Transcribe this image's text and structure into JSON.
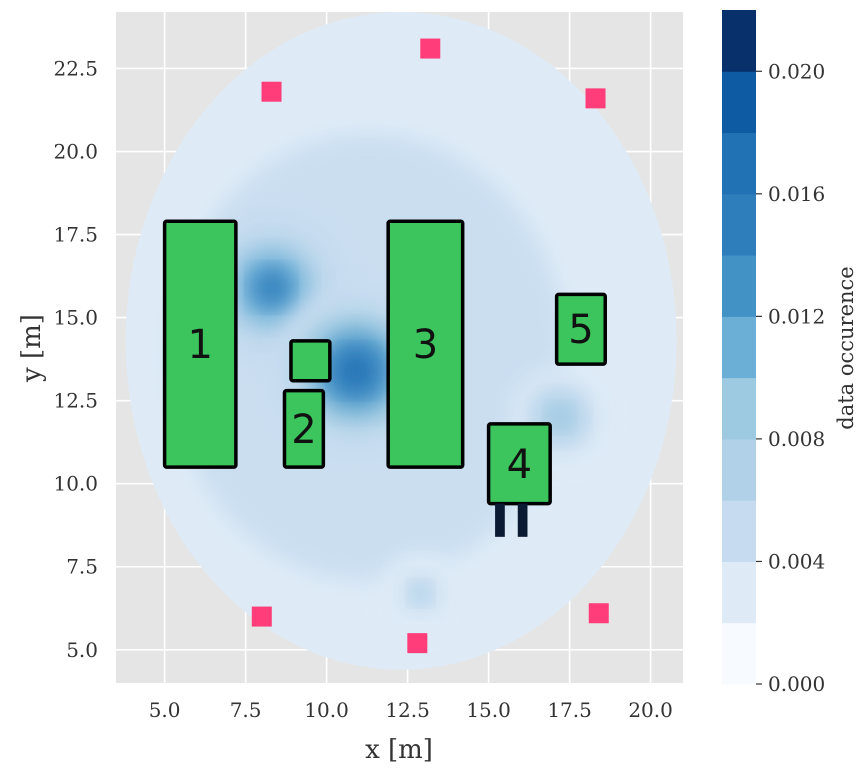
{
  "chart_data": {
    "type": "heatmap",
    "xlabel": "x [m]",
    "ylabel": "y [m]",
    "xlim": [
      3.5,
      21.0
    ],
    "ylim": [
      4.0,
      24.2
    ],
    "x_ticks": [
      "5.0",
      "7.5",
      "10.0",
      "12.5",
      "15.0",
      "17.5",
      "20.0"
    ],
    "y_ticks": [
      "5.0",
      "7.5",
      "10.0",
      "12.5",
      "15.0",
      "17.5",
      "20.0",
      "22.5"
    ],
    "grid": true,
    "background_color": "#e5e5e5",
    "colorbar": {
      "label": "data occurence",
      "min": 0.0,
      "max": 0.022,
      "levels": 11,
      "ticks": [
        "0.000",
        "0.004",
        "0.008",
        "0.012",
        "0.016",
        "0.020"
      ],
      "colors": [
        "#f7fbff",
        "#deebf7",
        "#c6dbef",
        "#b0d1e8",
        "#9ecae1",
        "#6baed6",
        "#4292c6",
        "#2f7ebc",
        "#2171b5",
        "#0f5ba3",
        "#08306b"
      ]
    },
    "density_hotspots": [
      {
        "x": 8.3,
        "y": 15.9,
        "value": 0.014
      },
      {
        "x": 10.9,
        "y": 13.4,
        "value": 0.016
      },
      {
        "x": 17.2,
        "y": 12.0,
        "value": 0.008
      },
      {
        "x": 12.9,
        "y": 6.7,
        "value": 0.006
      }
    ],
    "density_footprint": {
      "center_x": 12.3,
      "center_y": 14.3,
      "radius_x": 8.5,
      "radius_y": 9.9
    },
    "obstacles": [
      {
        "label": "1",
        "x0": 5.0,
        "x1": 7.2,
        "y0": 10.5,
        "y1": 17.9
      },
      {
        "label": "2",
        "x0": 8.7,
        "x1": 9.9,
        "y0": 10.5,
        "y1": 12.8
      },
      {
        "label": "",
        "x0": 8.9,
        "x1": 10.1,
        "y0": 13.1,
        "y1": 14.3
      },
      {
        "label": "3",
        "x0": 11.9,
        "x1": 14.2,
        "y0": 10.5,
        "y1": 17.9
      },
      {
        "label": "4",
        "x0": 15.0,
        "x1": 16.9,
        "y0": 9.4,
        "y1": 11.8
      },
      {
        "label": "5",
        "x0": 17.1,
        "x1": 18.6,
        "y0": 13.6,
        "y1": 15.7
      }
    ],
    "obstacle_color": "#3cc45d",
    "legs": [
      {
        "x0": 15.2,
        "x1": 15.5,
        "y0": 8.4,
        "y1": 9.4
      },
      {
        "x0": 15.9,
        "x1": 16.2,
        "y0": 8.4,
        "y1": 9.4
      }
    ],
    "anchors": [
      {
        "x": 8.3,
        "y": 21.8
      },
      {
        "x": 13.2,
        "y": 23.1
      },
      {
        "x": 18.3,
        "y": 21.6
      },
      {
        "x": 8.0,
        "y": 6.0
      },
      {
        "x": 12.8,
        "y": 5.2
      },
      {
        "x": 18.4,
        "y": 6.1
      }
    ],
    "anchor_color": "#ff3d7a"
  }
}
